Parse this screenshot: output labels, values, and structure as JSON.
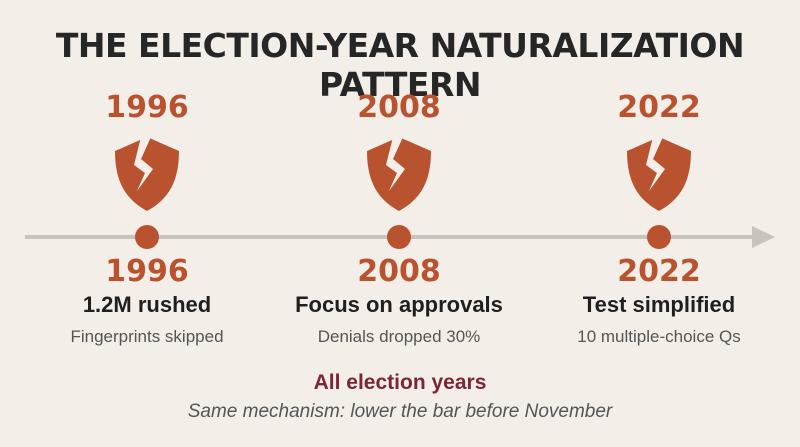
{
  "title": "THE ELECTION-YEAR NATURALIZATION PATTERN",
  "colors": {
    "accent": "#b9532f",
    "text": "#262626",
    "summary": "#7a2635",
    "muted": "#555555",
    "line": "#c8c4bd",
    "background": "#f3efe8"
  },
  "events": [
    {
      "year": "1996",
      "icon": "broken-shield-icon",
      "headline": "1.2M rushed",
      "detail": "Fingerprints skipped"
    },
    {
      "year": "2008",
      "icon": "broken-shield-icon",
      "headline": "Focus on approvals",
      "detail": "Denials dropped 30%"
    },
    {
      "year": "2022",
      "icon": "broken-shield-icon",
      "headline": "Test simplified",
      "detail": "10 multiple-choice Qs"
    }
  ],
  "summary": {
    "title": "All election years",
    "subtitle": "Same mechanism: lower the bar before November"
  }
}
